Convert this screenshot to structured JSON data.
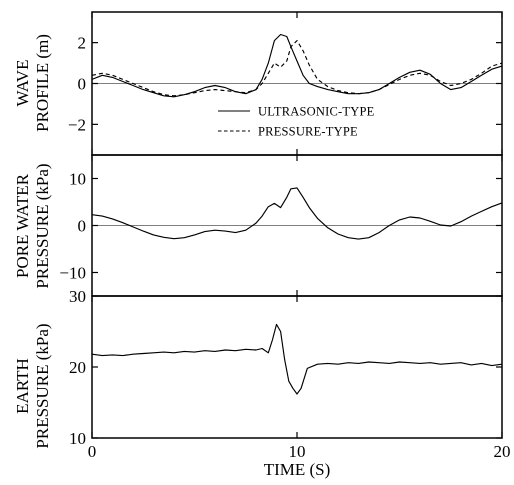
{
  "chart_data": [
    {
      "type": "line",
      "panel": "wave-profile",
      "ylabel_lines": [
        "WAVE",
        "PROFILE (m)"
      ],
      "ylim": [
        -3.5,
        3.5
      ],
      "yticks": [
        2,
        0,
        -2
      ],
      "ytick_labels": [
        "2",
        "0",
        "−2"
      ],
      "zero_line": true,
      "legend": {
        "placement": "lower-right-inside"
      },
      "series": [
        {
          "name": "ULTRASONIC-TYPE",
          "style": "solid",
          "x": [
            0,
            0.5,
            1,
            1.5,
            2,
            2.5,
            3,
            3.5,
            4,
            4.5,
            5,
            5.5,
            6,
            6.5,
            7,
            7.5,
            8,
            8.3,
            8.6,
            8.9,
            9.2,
            9.5,
            9.7,
            10,
            10.3,
            10.6,
            11,
            11.5,
            12,
            12.5,
            13,
            13.5,
            14,
            14.5,
            15,
            15.5,
            16,
            16.5,
            17,
            17.5,
            18,
            18.5,
            19,
            19.5,
            20
          ],
          "values": [
            0.2,
            0.4,
            0.3,
            0.1,
            -0.1,
            -0.3,
            -0.45,
            -0.6,
            -0.65,
            -0.55,
            -0.4,
            -0.2,
            -0.1,
            -0.2,
            -0.4,
            -0.5,
            -0.3,
            0.2,
            1.0,
            2.1,
            2.4,
            2.3,
            1.8,
            1.1,
            0.4,
            0.0,
            -0.15,
            -0.3,
            -0.4,
            -0.5,
            -0.5,
            -0.45,
            -0.3,
            0.0,
            0.3,
            0.55,
            0.65,
            0.45,
            0.0,
            -0.3,
            -0.2,
            0.1,
            0.4,
            0.7,
            0.85
          ]
        },
        {
          "name": "PRESSURE-TYPE",
          "style": "dashed",
          "x": [
            0,
            0.5,
            1,
            1.5,
            2,
            2.5,
            3,
            3.5,
            4,
            4.5,
            5,
            5.5,
            6,
            6.5,
            7,
            7.5,
            8,
            8.3,
            8.6,
            8.9,
            9.2,
            9.5,
            9.7,
            10,
            10.3,
            10.6,
            11,
            11.5,
            12,
            12.5,
            13,
            13.5,
            14,
            14.5,
            15,
            15.5,
            16,
            16.5,
            17,
            17.5,
            18,
            18.5,
            19,
            19.5,
            20
          ],
          "values": [
            0.4,
            0.5,
            0.4,
            0.2,
            0.0,
            -0.2,
            -0.4,
            -0.55,
            -0.6,
            -0.55,
            -0.45,
            -0.35,
            -0.3,
            -0.35,
            -0.4,
            -0.45,
            -0.3,
            0.0,
            0.5,
            1.0,
            0.8,
            1.1,
            1.8,
            2.1,
            1.6,
            0.9,
            0.2,
            -0.15,
            -0.35,
            -0.45,
            -0.5,
            -0.45,
            -0.3,
            -0.05,
            0.2,
            0.4,
            0.5,
            0.4,
            0.1,
            -0.1,
            0.0,
            0.2,
            0.5,
            0.85,
            1.0
          ]
        }
      ]
    },
    {
      "type": "line",
      "panel": "pore-water-pressure",
      "ylabel_lines": [
        "PORE WATER",
        "PRESSURE (kPa)"
      ],
      "ylim": [
        -15,
        15
      ],
      "yticks": [
        10,
        0,
        -10
      ],
      "ytick_labels": [
        "10",
        "0",
        "−10"
      ],
      "zero_line": true,
      "series": [
        {
          "style": "solid",
          "x": [
            0,
            0.5,
            1,
            1.5,
            2,
            2.5,
            3,
            3.5,
            4,
            4.5,
            5,
            5.5,
            6,
            6.5,
            7,
            7.5,
            8,
            8.3,
            8.6,
            8.9,
            9.2,
            9.5,
            9.7,
            10,
            10.3,
            10.6,
            11,
            11.5,
            12,
            12.5,
            13,
            13.5,
            14,
            14.5,
            15,
            15.5,
            16,
            16.5,
            17,
            17.5,
            18,
            18.5,
            19,
            19.5,
            20
          ],
          "values": [
            2.3,
            2.0,
            1.4,
            0.6,
            -0.3,
            -1.2,
            -2.0,
            -2.5,
            -2.8,
            -2.6,
            -2.0,
            -1.3,
            -1.0,
            -1.2,
            -1.5,
            -1.0,
            0.5,
            2.0,
            4.0,
            4.7,
            3.8,
            6.0,
            7.8,
            8.0,
            6.0,
            3.8,
            1.5,
            -0.5,
            -1.8,
            -2.6,
            -2.9,
            -2.6,
            -1.5,
            0.0,
            1.2,
            1.8,
            1.6,
            0.9,
            0.1,
            -0.1,
            0.8,
            2.0,
            3.0,
            4.0,
            4.8
          ]
        }
      ]
    },
    {
      "type": "line",
      "panel": "earth-pressure",
      "ylabel_lines": [
        "EARTH",
        "PRESSURE (kPa)"
      ],
      "ylim": [
        10,
        30
      ],
      "yticks": [
        30,
        20,
        10
      ],
      "ytick_labels": [
        "30",
        "20",
        "10"
      ],
      "zero_line": false,
      "series": [
        {
          "style": "solid",
          "x": [
            0,
            0.5,
            1,
            1.5,
            2,
            2.5,
            3,
            3.5,
            4,
            4.5,
            5,
            5.5,
            6,
            6.5,
            7,
            7.5,
            8,
            8.3,
            8.6,
            8.8,
            9.0,
            9.2,
            9.4,
            9.6,
            9.8,
            10.0,
            10.2,
            10.5,
            11,
            11.5,
            12,
            12.5,
            13,
            13.5,
            14,
            14.5,
            15,
            15.5,
            16,
            16.5,
            17,
            17.5,
            18,
            18.5,
            19,
            19.5,
            20
          ],
          "values": [
            21.8,
            21.6,
            21.7,
            21.6,
            21.8,
            21.9,
            22.0,
            22.1,
            22.0,
            22.2,
            22.1,
            22.3,
            22.2,
            22.4,
            22.3,
            22.5,
            22.4,
            22.6,
            22.0,
            23.8,
            26.0,
            25.0,
            21.0,
            18.0,
            17.0,
            16.2,
            17.0,
            19.8,
            20.4,
            20.5,
            20.4,
            20.6,
            20.5,
            20.7,
            20.6,
            20.5,
            20.7,
            20.6,
            20.5,
            20.6,
            20.4,
            20.5,
            20.6,
            20.3,
            20.5,
            20.2,
            20.4
          ]
        }
      ]
    }
  ],
  "shared_x": {
    "xlabel": "TIME (S)",
    "xlim": [
      0,
      20
    ],
    "xticks": [
      0,
      10,
      20
    ],
    "xtick_labels": [
      "0",
      "10",
      "20"
    ]
  },
  "style": {
    "line_color": "#000000",
    "zero_line_color": "#000000",
    "background": "#ffffff"
  }
}
